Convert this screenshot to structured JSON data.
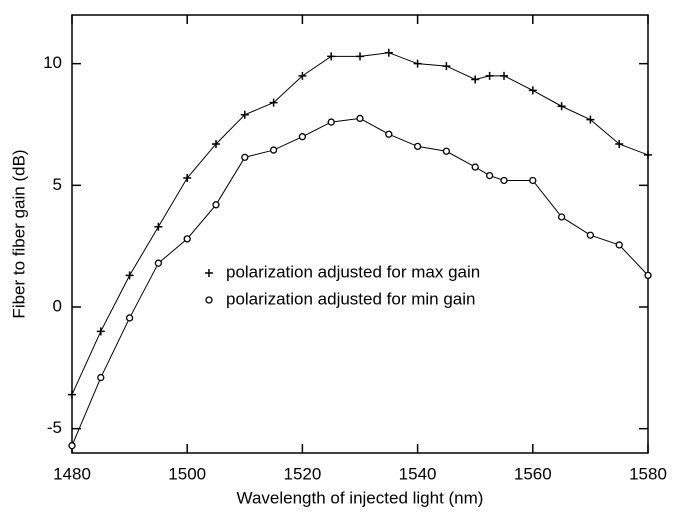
{
  "chart_data": {
    "type": "line",
    "xlabel": "Wavelength of injected light (nm)",
    "ylabel": "Fiber to fiber gain (dB)",
    "x": [
      1480,
      1485,
      1490,
      1495,
      1500,
      1505,
      1510,
      1515,
      1520,
      1525,
      1530,
      1535,
      1540,
      1545,
      1550,
      1552.5,
      1555,
      1560,
      1565,
      1570,
      1575,
      1580
    ],
    "series": [
      {
        "name": "polarization adjusted for max gain",
        "color": "#000000",
        "marker": "plus",
        "values": [
          -3.6,
          -1.0,
          1.3,
          3.3,
          5.3,
          6.7,
          7.9,
          8.4,
          9.5,
          10.3,
          10.3,
          10.45,
          10.0,
          9.9,
          9.35,
          9.5,
          9.5,
          8.9,
          8.25,
          7.7,
          6.7,
          6.25
        ]
      },
      {
        "name": "polarization adjusted for min gain",
        "color": "#000000",
        "marker": "circle",
        "values": [
          -5.7,
          -2.9,
          -0.45,
          1.8,
          2.8,
          4.2,
          6.15,
          6.45,
          7.0,
          7.6,
          7.75,
          7.1,
          6.6,
          6.4,
          5.75,
          5.4,
          5.2,
          5.2,
          3.7,
          2.95,
          2.55,
          1.3
        ]
      }
    ],
    "xlim": [
      1480,
      1580
    ],
    "xticks": [
      1480,
      1500,
      1520,
      1540,
      1560,
      1580
    ],
    "ylim": [
      -6,
      12
    ],
    "yticks": [
      -5,
      0,
      5,
      10
    ],
    "grid": false
  }
}
